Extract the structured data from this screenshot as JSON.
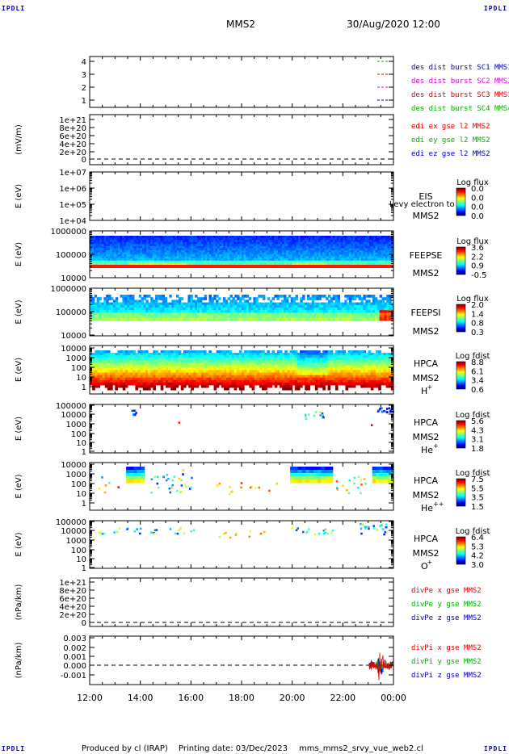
{
  "header": {
    "mission": "MMS2",
    "datetime": "30/Aug/2020 12:00"
  },
  "corner_label": "IPDLI",
  "footer": {
    "produced": "Produced by cl (IRAP)",
    "printing": "Printing date: 03/Dec/2023",
    "file": "mms_mms2_srvy_vue_web2.cl"
  },
  "x_ticks": [
    "12:00",
    "14:00",
    "16:00",
    "18:00",
    "20:00",
    "22:00",
    "00:00"
  ],
  "colors": {
    "red": "#e00000",
    "green": "#00b000",
    "magenta": "#e000e0",
    "blue": "#0000c0"
  },
  "chart_data": [
    {
      "type": "line",
      "id": "burst",
      "yticks": [
        "4",
        "3",
        "2",
        "1"
      ],
      "legend": [
        {
          "text": "des dist burst SC1 MMS1",
          "color": "blue"
        },
        {
          "text": "des dist burst SC2 MMS2",
          "color": "magenta"
        },
        {
          "text": "des dist burst SC3 MMS3",
          "color": "red"
        },
        {
          "text": "des dist burst SC4 MMS4",
          "color": "green"
        }
      ]
    },
    {
      "type": "line",
      "id": "edi",
      "ylabel": "(mV/m)",
      "yticks": [
        "1e+21",
        "8e+20",
        "6e+20",
        "4e+20",
        "2e+20",
        "0"
      ],
      "legend": [
        {
          "text": "edi ex gse l2 MMS2",
          "color": "red"
        },
        {
          "text": "edi ey gse l2 MMS2",
          "color": "green"
        },
        {
          "text": "edi ez gse l2 MMS2",
          "color": "blue"
        }
      ]
    },
    {
      "type": "heatmap",
      "id": "eis",
      "ylabel": "E (eV)",
      "yticks": [
        "1e+07",
        "1e+06",
        "1e+05",
        "1e+04"
      ],
      "inst": "EIS",
      "sc": "MMS2",
      "extra": "Levy electron to",
      "cbar_title": "Log flux",
      "cbar_ticks": [
        "0.0",
        "0.0",
        "0.0",
        "0.0"
      ]
    },
    {
      "type": "heatmap",
      "id": "feepse",
      "ylabel": "E (eV)",
      "yticks": [
        "1000000",
        "100000",
        "10000"
      ],
      "inst": "FEEPSE",
      "sc": "MMS2",
      "cbar_title": "Log flux",
      "cbar_ticks": [
        "3.6",
        "2.2",
        "0.9",
        "-0.5"
      ]
    },
    {
      "type": "heatmap",
      "id": "feepsi",
      "ylabel": "E (eV)",
      "yticks": [
        "1000000",
        "100000",
        "10000"
      ],
      "inst": "FEEPSI",
      "sc": "MMS2",
      "cbar_title": "Log flux",
      "cbar_ticks": [
        "2.0",
        "1.4",
        "0.8",
        "0.3"
      ]
    },
    {
      "type": "heatmap",
      "id": "hpca_h",
      "ylabel": "E (eV)",
      "yticks": [
        "10000",
        "1000",
        "100",
        "10",
        "1"
      ],
      "inst": "HPCA",
      "sc": "MMS2",
      "species": "H",
      "charge": "+",
      "cbar_title": "Log fdist",
      "cbar_ticks": [
        "8.8",
        "6.1",
        "3.4",
        "0.6"
      ]
    },
    {
      "type": "heatmap",
      "id": "hpca_he",
      "ylabel": "E (eV)",
      "yticks": [
        "100000",
        "10000",
        "1000",
        "100",
        "10",
        "1"
      ],
      "inst": "HPCA",
      "sc": "MMS2",
      "species": "He",
      "charge": "+",
      "cbar_title": "Log fdist",
      "cbar_ticks": [
        "5.6",
        "4.3",
        "3.1",
        "1.8"
      ]
    },
    {
      "type": "heatmap",
      "id": "hpca_hepp",
      "ylabel": "E (eV)",
      "yticks": [
        "10000",
        "1000",
        "100",
        "10",
        "1"
      ],
      "inst": "HPCA",
      "sc": "MMS2",
      "species": "He",
      "charge": "++",
      "cbar_title": "Log fdist",
      "cbar_ticks": [
        "7.5",
        "5.5",
        "3.5",
        "1.5"
      ]
    },
    {
      "type": "heatmap",
      "id": "hpca_o",
      "ylabel": "E (eV)",
      "yticks": [
        "100000",
        "10000",
        "1000",
        "100",
        "10",
        "1"
      ],
      "inst": "HPCA",
      "sc": "MMS2",
      "species": "O",
      "charge": "+",
      "cbar_title": "Log fdist",
      "cbar_ticks": [
        "6.4",
        "5.3",
        "4.2",
        "3.0"
      ]
    },
    {
      "type": "line",
      "id": "divpe",
      "ylabel": "(nPa/km)",
      "yticks": [
        "1e+21",
        "8e+20",
        "6e+20",
        "4e+20",
        "2e+20",
        "0"
      ],
      "legend": [
        {
          "text": "divPe x gse MMS2",
          "color": "red"
        },
        {
          "text": "divPe y gse MMS2",
          "color": "green"
        },
        {
          "text": "divPe z gse MMS2",
          "color": "blue"
        }
      ]
    },
    {
      "type": "line",
      "id": "divpi",
      "ylabel": "(nPa/km)",
      "yticks": [
        "0.003",
        "0.002",
        "0.001",
        "0.000",
        "-0.001"
      ],
      "legend": [
        {
          "text": "divPi x gse MMS2",
          "color": "red"
        },
        {
          "text": "divPi y gse MMS2",
          "color": "green"
        },
        {
          "text": "divPi z gse MMS2",
          "color": "blue"
        }
      ]
    }
  ]
}
